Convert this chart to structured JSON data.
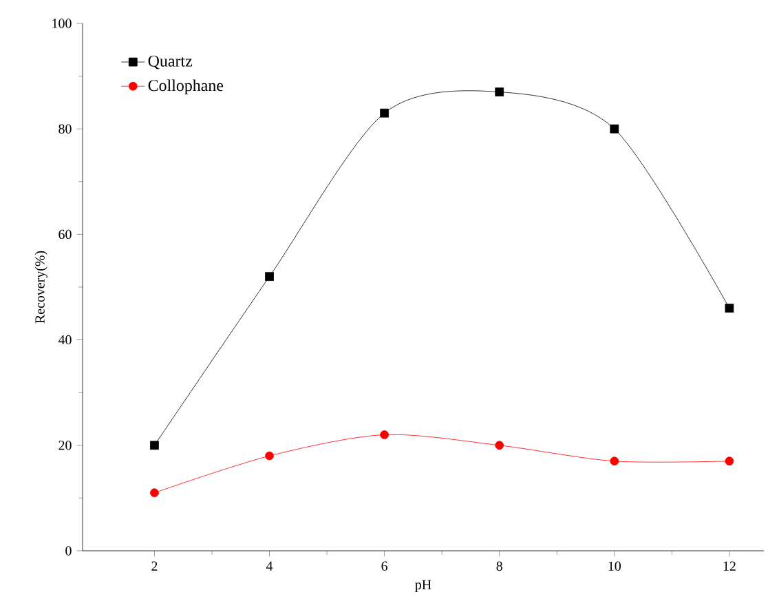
{
  "chart_data": {
    "type": "line",
    "xlabel": "pH",
    "ylabel": "Recovery(%)",
    "x": [
      2,
      4,
      6,
      8,
      10,
      12
    ],
    "series": [
      {
        "name": "Quartz",
        "color": "#000000",
        "marker": "square",
        "values": [
          20,
          52,
          83,
          87,
          80,
          46
        ]
      },
      {
        "name": "Collophane",
        "color": "#ff0000",
        "marker": "circle",
        "values": [
          11,
          18,
          22,
          20,
          17,
          17
        ]
      }
    ],
    "xlim": [
      0.75,
      12.6
    ],
    "ylim": [
      0,
      100
    ],
    "xticks": [
      2,
      4,
      6,
      8,
      10,
      12
    ],
    "yticks": [
      0,
      20,
      40,
      60,
      80,
      100
    ],
    "grid": false,
    "legend": "top left"
  }
}
